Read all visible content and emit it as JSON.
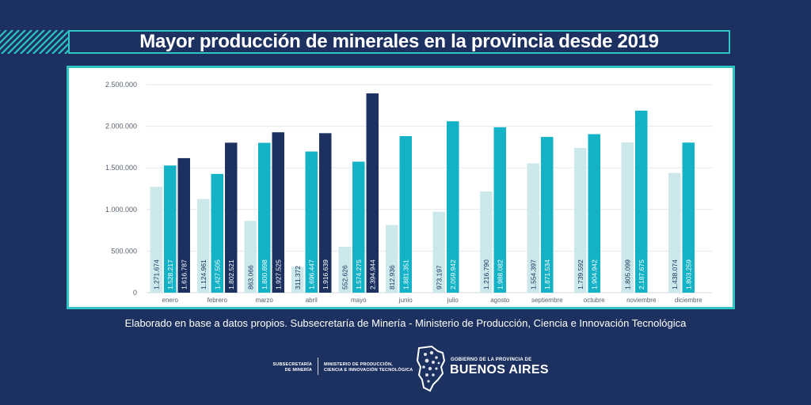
{
  "header": {
    "title": "Mayor producción de minerales en la provincia desde 2019"
  },
  "source_note": "Elaborado en base a datos propios. Subsecretaría de Minería - Ministerio de Producción, Ciencia e Innovación Tecnológica",
  "footer": {
    "sub_line1": "SUBSECRETARÍA",
    "sub_line2": "DE MINERÍA",
    "ministry_line1": "MINISTERIO DE PRODUCCIÓN,",
    "ministry_line2": "CIENCIA E INNOVACIÓN TECNOLÓGICA",
    "gov_line1": "GOBIERNO DE LA PROVINCIA DE",
    "gov_line2": "BUENOS AIRES"
  },
  "colors": {
    "background": "#1d3160",
    "accent": "#2ec4c4",
    "series_light": "#cde8ea",
    "series_mid": "#13b2c6",
    "series_dark": "#1d3160"
  },
  "chart_data": {
    "type": "bar",
    "categories": [
      "enero",
      "febrero",
      "marzo",
      "abril",
      "mayo",
      "junio",
      "julio",
      "agosto",
      "septiembre",
      "octubre",
      "noviembre",
      "diciembre"
    ],
    "series": [
      {
        "color": "#cde8ea",
        "values": [
          1271674,
          1124961,
          863066,
          311372,
          552626,
          812936,
          973197,
          1216790,
          1554397,
          1739592,
          1805099,
          1438074
        ],
        "labels": [
          "1.271.674",
          "1.124.961",
          "863.066",
          "311.372",
          "552.626",
          "812.936",
          "973.197",
          "1.216.790",
          "1.554.397",
          "1.739.592",
          "1.805.099",
          "1.438.074"
        ]
      },
      {
        "color": "#13b2c6",
        "values": [
          1528217,
          1427505,
          1800898,
          1696447,
          1574275,
          1881351,
          2059942,
          1988082,
          1871534,
          1904942,
          2187675,
          1803259
        ],
        "labels": [
          "1.528.217",
          "1.427.505",
          "1.800.898",
          "1.696.447",
          "1.574.275",
          "1.881.351",
          "2.059.942",
          "1.988.082",
          "1.871.534",
          "1.904.942",
          "2.187.675",
          "1.803.259"
        ]
      },
      {
        "color": "#1d3160",
        "values": [
          1616787,
          1802521,
          1927525,
          1916639,
          2394944,
          null,
          null,
          null,
          null,
          null,
          null,
          null
        ],
        "labels": [
          "1.616.787",
          "1.802.521",
          "1.927.525",
          "1.916.639",
          "2.394.944",
          "",
          "",
          "",
          "",
          "",
          "",
          ""
        ]
      }
    ],
    "ylim": [
      0,
      2500000
    ],
    "yticks": [
      0,
      500000,
      1000000,
      1500000,
      2000000,
      2500000
    ],
    "ytick_labels": [
      "0",
      "500.000",
      "1.000.000",
      "1.500.000",
      "2.000.000",
      "2.500.000"
    ],
    "grid": true,
    "legend": "none"
  }
}
